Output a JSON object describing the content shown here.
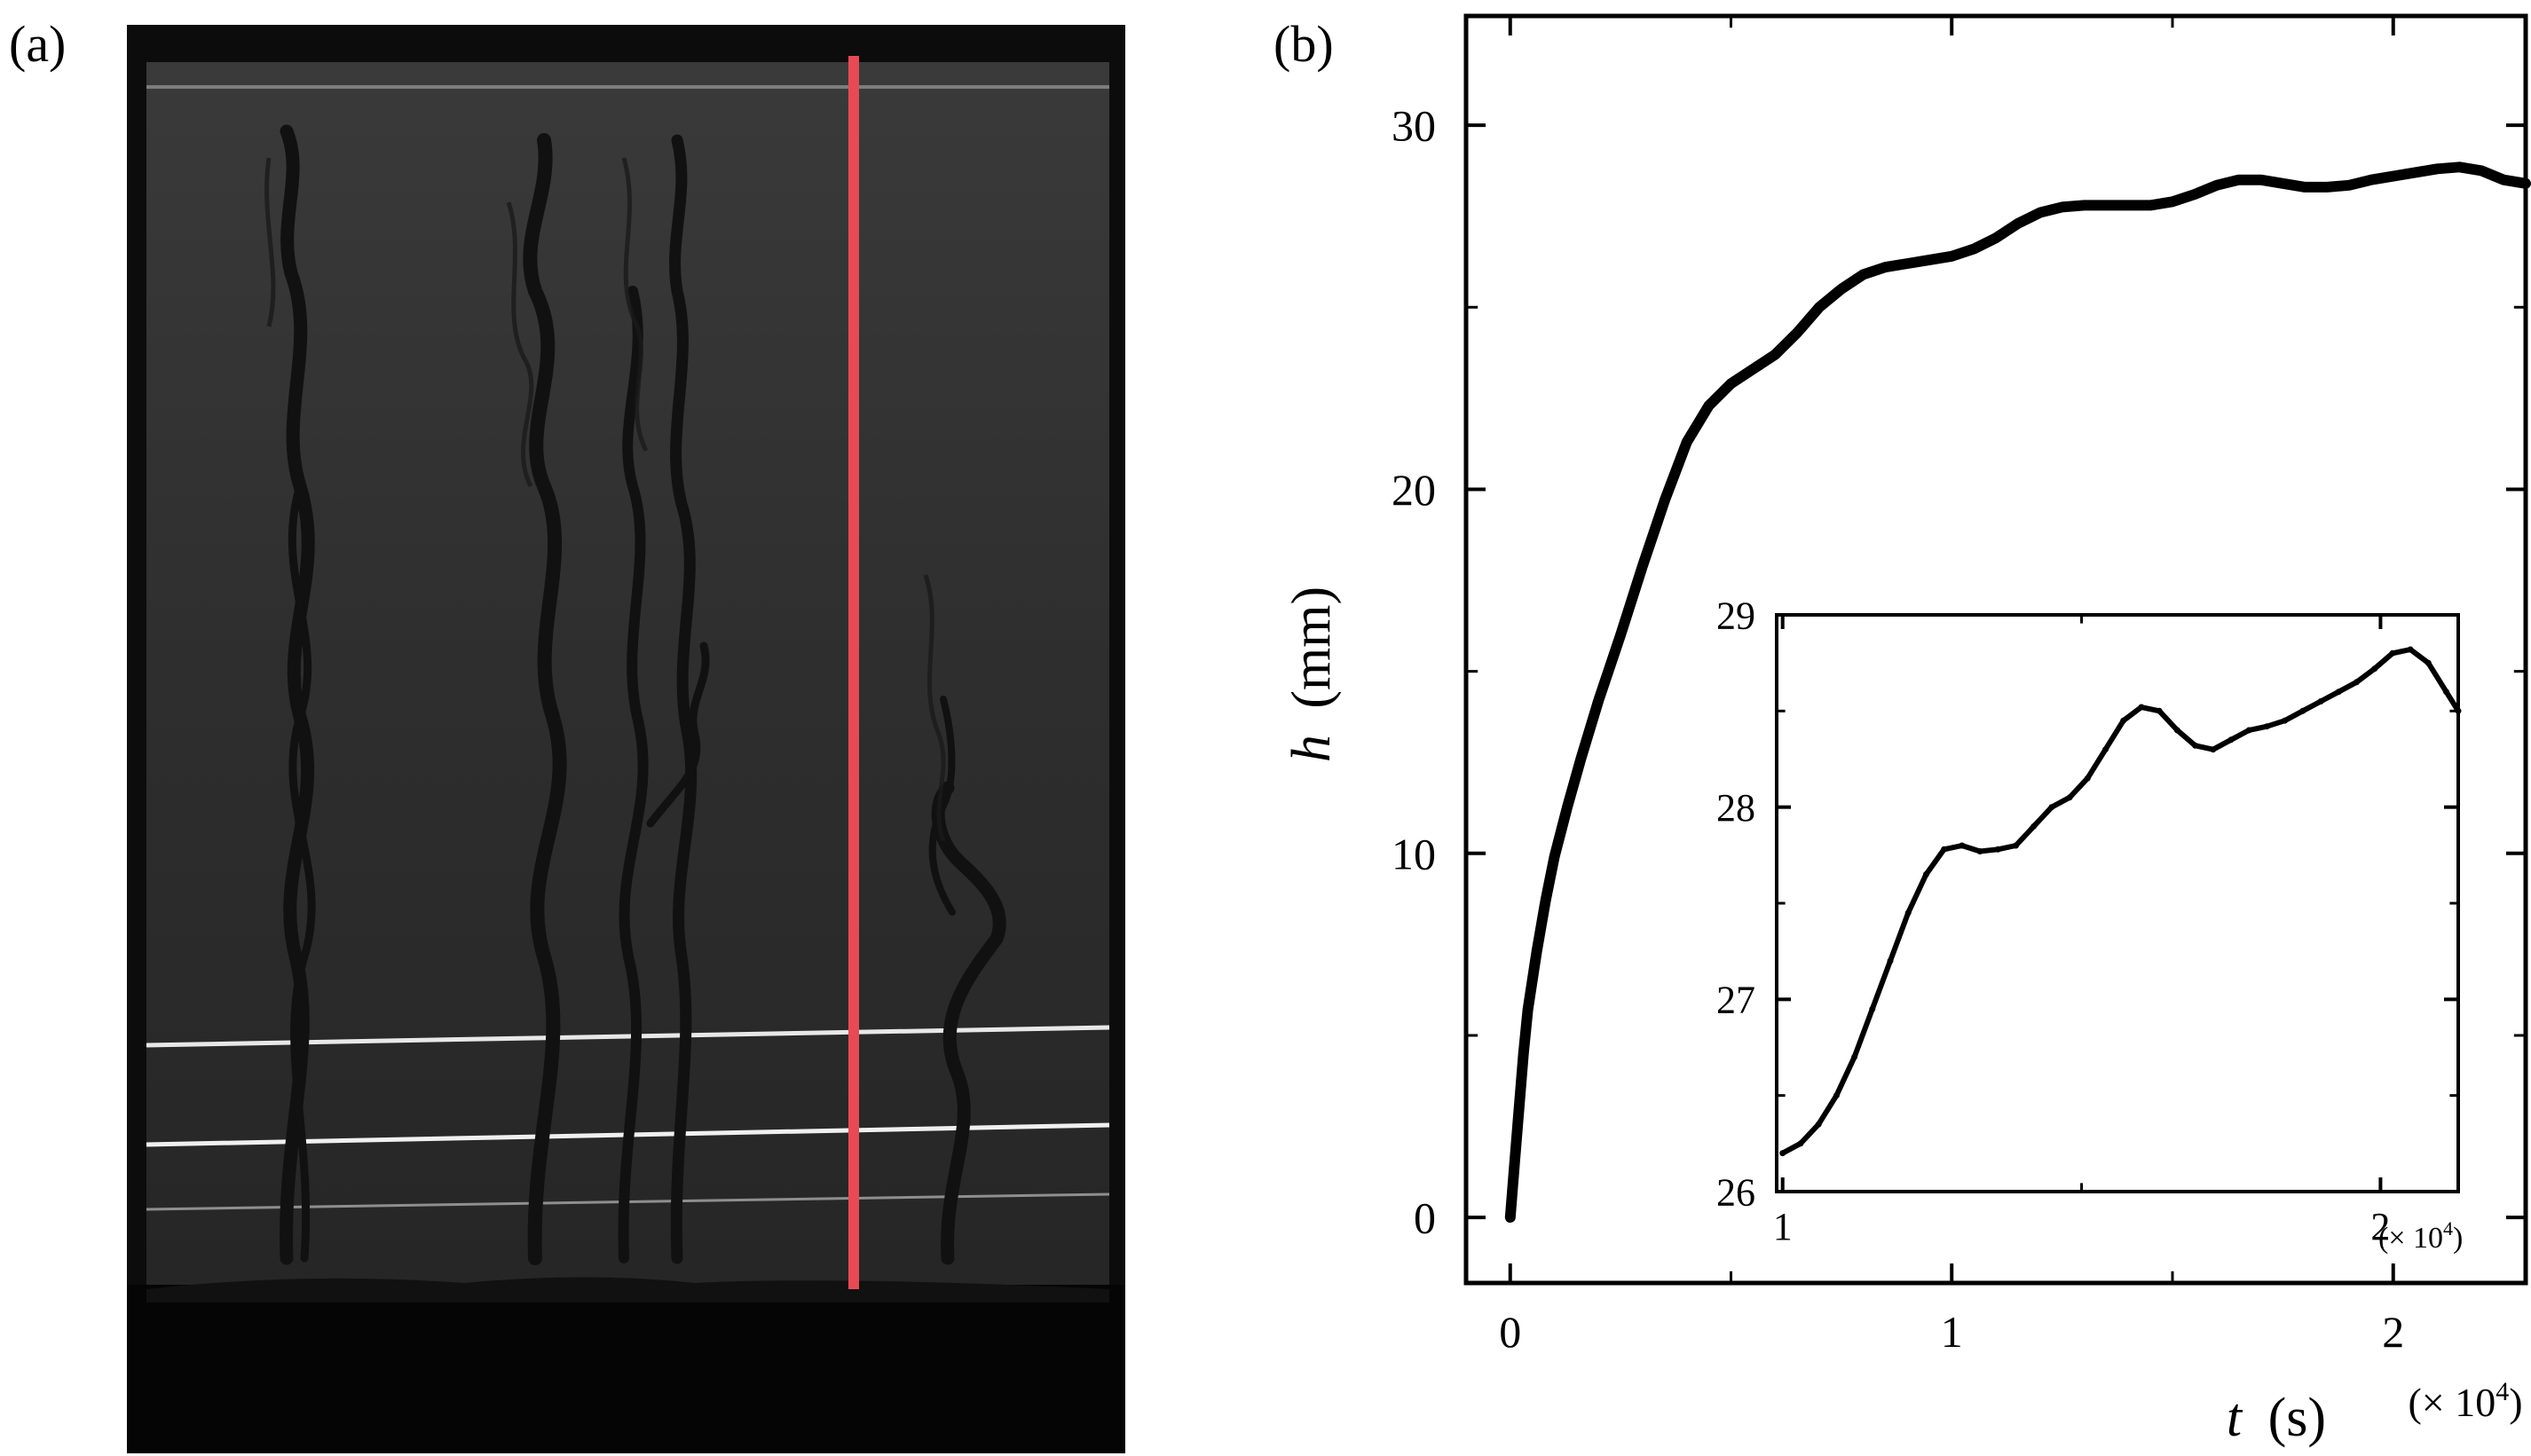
{
  "panel_a": {
    "label": "(a)",
    "image": "shadowgraph-photo"
  },
  "panel_b": {
    "label": "(b)"
  },
  "chart_data": [
    {
      "type": "line",
      "name": "main",
      "xlabel_var": "t",
      "xlabel_unit": "(s)",
      "ylabel_var": "h",
      "ylabel_unit": "(mm)",
      "x_multiplier": "(× 10",
      "x_multiplier_exp": "4",
      "x_multiplier_close": ")",
      "xlim": [
        -0.1,
        2.3
      ],
      "ylim": [
        -1.8,
        33
      ],
      "xticks": [
        0,
        1,
        2
      ],
      "xtick_labels": [
        "0",
        "1",
        "2"
      ],
      "yticks": [
        0,
        10,
        20,
        30
      ],
      "ytick_labels": [
        "0",
        "10",
        "20",
        "30"
      ],
      "x": [
        0.0,
        0.01,
        0.02,
        0.03,
        0.04,
        0.06,
        0.08,
        0.1,
        0.13,
        0.16,
        0.2,
        0.25,
        0.3,
        0.35,
        0.4,
        0.45,
        0.5,
        0.55,
        0.6,
        0.65,
        0.7,
        0.75,
        0.8,
        0.85,
        0.9,
        0.95,
        1.0,
        1.05,
        1.1,
        1.15,
        1.2,
        1.25,
        1.3,
        1.35,
        1.4,
        1.45,
        1.5,
        1.55,
        1.6,
        1.65,
        1.7,
        1.75,
        1.8,
        1.85,
        1.9,
        1.95,
        2.0,
        2.05,
        2.1,
        2.15,
        2.2,
        2.25,
        2.3
      ],
      "y": [
        0.0,
        1.5,
        3.0,
        4.5,
        5.7,
        7.3,
        8.7,
        9.9,
        11.3,
        12.6,
        14.2,
        16.0,
        17.9,
        19.7,
        21.3,
        22.3,
        22.9,
        23.3,
        23.7,
        24.3,
        25.0,
        25.5,
        25.9,
        26.1,
        26.2,
        26.3,
        26.4,
        26.6,
        26.9,
        27.3,
        27.6,
        27.75,
        27.8,
        27.8,
        27.8,
        27.8,
        27.9,
        28.1,
        28.35,
        28.5,
        28.5,
        28.4,
        28.3,
        28.3,
        28.35,
        28.5,
        28.6,
        28.7,
        28.8,
        28.85,
        28.75,
        28.5,
        28.4
      ]
    },
    {
      "type": "line",
      "name": "inset",
      "xlim": [
        0.99,
        2.13
      ],
      "ylim": [
        26.0,
        29.0
      ],
      "xticks": [
        1,
        2
      ],
      "xtick_labels": [
        "1",
        "2"
      ],
      "yticks": [
        26,
        27,
        28,
        29
      ],
      "ytick_labels": [
        "26",
        "27",
        "28",
        "29"
      ],
      "x_multiplier": "(× 10",
      "x_multiplier_exp": "4",
      "x_multiplier_close": ")",
      "x": [
        1.0,
        1.03,
        1.06,
        1.09,
        1.12,
        1.15,
        1.18,
        1.21,
        1.24,
        1.27,
        1.3,
        1.33,
        1.36,
        1.39,
        1.42,
        1.45,
        1.48,
        1.51,
        1.54,
        1.57,
        1.6,
        1.63,
        1.66,
        1.69,
        1.72,
        1.75,
        1.78,
        1.81,
        1.84,
        1.87,
        1.9,
        1.93,
        1.96,
        1.99,
        2.02,
        2.05,
        2.08,
        2.11,
        2.13
      ],
      "y": [
        26.2,
        26.25,
        26.35,
        26.5,
        26.7,
        26.95,
        27.2,
        27.45,
        27.65,
        27.78,
        27.8,
        27.77,
        27.78,
        27.8,
        27.9,
        28.0,
        28.05,
        28.15,
        28.3,
        28.45,
        28.52,
        28.5,
        28.4,
        28.32,
        28.3,
        28.35,
        28.4,
        28.42,
        28.45,
        28.5,
        28.55,
        28.6,
        28.65,
        28.72,
        28.8,
        28.82,
        28.75,
        28.6,
        28.5
      ]
    }
  ]
}
